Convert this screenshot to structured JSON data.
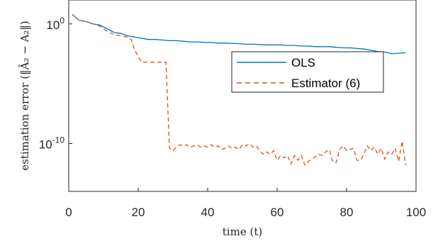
{
  "chart_data": {
    "type": "line",
    "xlabel": "time (t)",
    "ylabel": "estimation error (‖Â₂ − A₂‖)",
    "x_ticks": [
      "0",
      "20",
      "40",
      "60",
      "80",
      "100"
    ],
    "y_ticks": [
      {
        "base": "10",
        "exp": "0",
        "value": 0
      },
      {
        "base": "10",
        "exp": "-10",
        "value": -10
      }
    ],
    "xlim": [
      0,
      100
    ],
    "ylim_log10": [
      -14,
      2
    ],
    "y_scale": "log",
    "grid": false,
    "legend_position": "upper-right",
    "series": [
      {
        "name": "OLS",
        "color": "#0072BD",
        "style": "solid",
        "x": [
          1,
          3,
          5,
          7,
          9,
          11,
          13,
          15,
          17,
          19,
          21,
          23,
          25,
          27,
          29,
          31,
          33,
          35,
          37,
          39,
          41,
          43,
          45,
          47,
          49,
          51,
          53,
          55,
          57,
          59,
          61,
          63,
          65,
          67,
          69,
          71,
          73,
          75,
          77,
          79,
          81,
          83,
          85,
          87,
          89,
          91,
          93,
          95,
          97
        ],
        "log10_y": [
          0.8,
          0.3,
          0.2,
          0.0,
          -0.1,
          -0.4,
          -0.7,
          -0.8,
          -1.0,
          -1.1,
          -1.2,
          -1.3,
          -1.3,
          -1.35,
          -1.4,
          -1.4,
          -1.45,
          -1.5,
          -1.5,
          -1.55,
          -1.55,
          -1.6,
          -1.6,
          -1.62,
          -1.65,
          -1.7,
          -1.7,
          -1.72,
          -1.75,
          -1.75,
          -1.75,
          -1.8,
          -1.8,
          -1.85,
          -1.85,
          -1.9,
          -1.9,
          -1.9,
          -1.95,
          -2.0,
          -2.0,
          -2.05,
          -2.1,
          -2.2,
          -2.3,
          -2.35,
          -2.5,
          -2.45,
          -2.4
        ]
      },
      {
        "name": "Estimator (6)",
        "color": "#D95319",
        "style": "dashed",
        "x": [
          1,
          3,
          5,
          7,
          9,
          11,
          13,
          15,
          17,
          18,
          19,
          20,
          21,
          28,
          29,
          30,
          31,
          32,
          33,
          34,
          35,
          36,
          37,
          38,
          39,
          40,
          41,
          42,
          43,
          44,
          45,
          46,
          47,
          48,
          49,
          50,
          51,
          52,
          53,
          54,
          55,
          56,
          57,
          58,
          59,
          60,
          61,
          62,
          63,
          64,
          65,
          66,
          67,
          68,
          69,
          70,
          71,
          72,
          73,
          74,
          75,
          76,
          77,
          78,
          79,
          80,
          81,
          82,
          83,
          84,
          85,
          86,
          87,
          88,
          89,
          90,
          91,
          92,
          93,
          94,
          95,
          96,
          97
        ],
        "log10_y": [
          0.8,
          0.3,
          0.2,
          0.0,
          -0.2,
          -0.6,
          -0.9,
          -1.0,
          -1.1,
          -1.3,
          -2.2,
          -2.7,
          -3.2,
          -3.2,
          -10.4,
          -10.6,
          -10.3,
          -10.1,
          -10.2,
          -10.1,
          -10.3,
          -10.2,
          -10.1,
          -10.3,
          -10.2,
          -10.3,
          -10.1,
          -10.3,
          -10.2,
          -10.5,
          -10.4,
          -10.2,
          -10.4,
          -10.3,
          -10.5,
          -10.1,
          -10.2,
          -10.0,
          -10.3,
          -10.2,
          -10.6,
          -10.9,
          -10.7,
          -10.9,
          -10.6,
          -11.4,
          -11.0,
          -11.2,
          -11.0,
          -11.7,
          -11.0,
          -11.4,
          -11.0,
          -11.8,
          -11.5,
          -11.3,
          -11.1,
          -10.9,
          -11.0,
          -10.7,
          -10.5,
          -11.5,
          -11.6,
          -10.5,
          -10.2,
          -10.6,
          -10.5,
          -10.4,
          -11.4,
          -11.4,
          -10.9,
          -10.2,
          -10.6,
          -10.3,
          -10.9,
          -10.4,
          -11.3,
          -10.7,
          -10.9,
          -10.4,
          -11.5,
          -9.8,
          -11.8
        ]
      }
    ]
  }
}
